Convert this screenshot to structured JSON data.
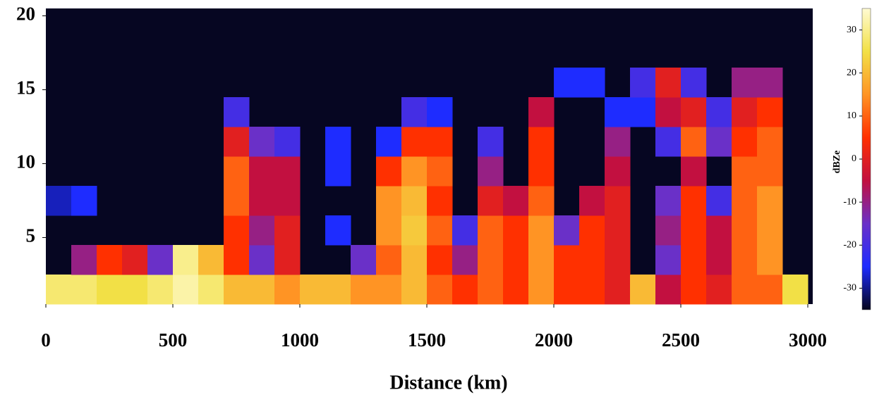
{
  "chart_data": {
    "type": "heatmap",
    "xlabel": "Distance (km)",
    "colorbar_label": "dBZe",
    "xlim": [
      0,
      3000
    ],
    "ylim": [
      0.5,
      20.5
    ],
    "xticks": [
      0,
      500,
      1000,
      1500,
      2000,
      2500,
      3000
    ],
    "yticks": [
      5,
      10,
      15,
      20
    ],
    "clim": [
      -35,
      35
    ],
    "cticks": [
      -30,
      -20,
      -10,
      0,
      10,
      20,
      30
    ],
    "colormap": [
      "#05051c",
      "#1e2cff",
      "#6a30c8",
      "#c21040",
      "#ff3000",
      "#ff9424",
      "#f2e046",
      "#fffbd2"
    ],
    "background": "#060622",
    "x_bins": [
      0,
      100,
      200,
      300,
      400,
      500,
      600,
      700,
      800,
      900,
      1000,
      1100,
      1200,
      1300,
      1400,
      1500,
      1600,
      1700,
      1800,
      1900,
      2000,
      2100,
      2200,
      2300,
      2400,
      2500,
      2600,
      2700,
      2800,
      2900,
      3000
    ],
    "y_bins": [
      0.5,
      2.5,
      4.5,
      6.5,
      8.5,
      10.5,
      12.5,
      14.5,
      16.5,
      18.5,
      20.5
    ],
    "z": [
      [
        28,
        28,
        25,
        25,
        28,
        32,
        28,
        20,
        20,
        15,
        20,
        20,
        15,
        15,
        20,
        10,
        5,
        10,
        5,
        15,
        5,
        5,
        0,
        20,
        -5,
        5,
        0,
        10,
        10,
        25
      ],
      [
        null,
        -10,
        5,
        0,
        -15,
        30,
        20,
        5,
        -15,
        0,
        null,
        null,
        -15,
        10,
        20,
        5,
        -10,
        10,
        5,
        15,
        5,
        5,
        0,
        null,
        -15,
        5,
        -5,
        10,
        15,
        null
      ],
      [
        null,
        null,
        null,
        null,
        null,
        null,
        null,
        5,
        -10,
        0,
        null,
        -25,
        null,
        15,
        22,
        10,
        -20,
        10,
        5,
        15,
        -15,
        5,
        0,
        null,
        -10,
        5,
        -5,
        10,
        15,
        null
      ],
      [
        -28,
        -25,
        null,
        null,
        null,
        null,
        null,
        10,
        -5,
        -5,
        null,
        null,
        null,
        15,
        20,
        5,
        null,
        0,
        -5,
        10,
        null,
        -5,
        0,
        null,
        -15,
        5,
        -20,
        10,
        15,
        null
      ],
      [
        null,
        null,
        null,
        null,
        null,
        null,
        null,
        10,
        -5,
        -5,
        null,
        -25,
        null,
        5,
        15,
        10,
        null,
        -10,
        null,
        5,
        null,
        null,
        -5,
        null,
        null,
        -5,
        null,
        10,
        10,
        null
      ],
      [
        null,
        null,
        null,
        null,
        null,
        null,
        null,
        0,
        -15,
        -20,
        null,
        -25,
        null,
        -25,
        5,
        5,
        null,
        -20,
        null,
        5,
        null,
        null,
        -10,
        null,
        -20,
        10,
        -15,
        5,
        10,
        null
      ],
      [
        null,
        null,
        null,
        null,
        null,
        null,
        null,
        -20,
        null,
        null,
        null,
        null,
        null,
        null,
        -20,
        -25,
        null,
        null,
        null,
        -5,
        null,
        null,
        -25,
        -25,
        -5,
        0,
        -20,
        0,
        5,
        null
      ],
      [
        null,
        null,
        null,
        null,
        null,
        null,
        null,
        null,
        null,
        null,
        null,
        null,
        null,
        null,
        null,
        null,
        null,
        null,
        null,
        null,
        -25,
        -25,
        null,
        -20,
        0,
        -20,
        null,
        -10,
        -10,
        null
      ],
      [
        null,
        null,
        null,
        null,
        null,
        null,
        null,
        null,
        null,
        null,
        null,
        null,
        null,
        null,
        null,
        null,
        null,
        null,
        null,
        null,
        null,
        null,
        null,
        null,
        null,
        null,
        null,
        null,
        null,
        null
      ],
      [
        null,
        null,
        null,
        null,
        null,
        null,
        null,
        null,
        null,
        null,
        null,
        null,
        null,
        null,
        null,
        null,
        null,
        null,
        null,
        null,
        null,
        null,
        null,
        null,
        null,
        null,
        null,
        null,
        null,
        null
      ]
    ]
  }
}
